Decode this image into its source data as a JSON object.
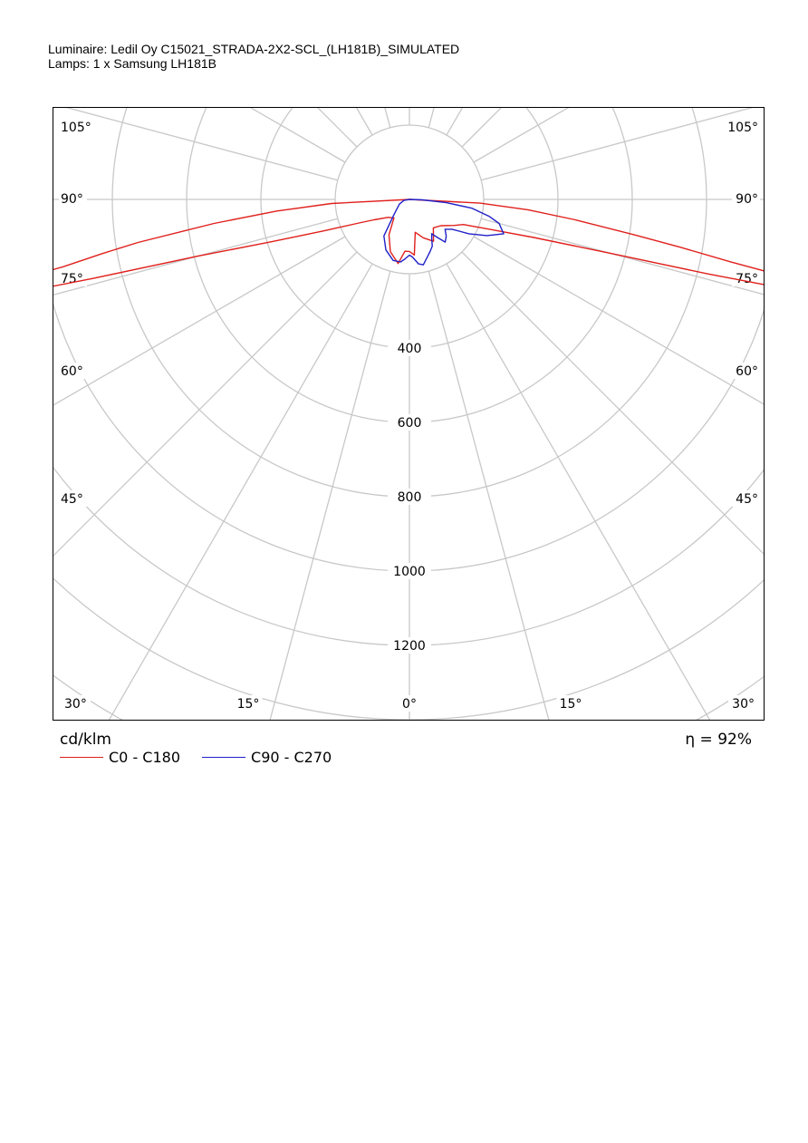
{
  "header": {
    "line1": "Luminaire: Ledil Oy C15021_STRADA-2X2-SCL_(LH181B)_SIMULATED",
    "line2": "Lamps: 1 x Samsung LH181B"
  },
  "footer": {
    "unit": "cd/klm",
    "efficiency": "η = 92%"
  },
  "colors": {
    "c0": "#e0201c",
    "c90": "#2020c8",
    "grid": "#c8c8c8"
  },
  "chart_data": {
    "type": "polar",
    "title": "",
    "unit": "cd/klm",
    "radial_ticks": [
      400,
      600,
      800,
      1000,
      1200
    ],
    "radial_grid": [
      200,
      400,
      600,
      800,
      1000,
      1200,
      1400,
      1600
    ],
    "angle_ticks": [
      {
        "label": "105°",
        "side": "left"
      },
      {
        "label": "90°",
        "side": "left"
      },
      {
        "label": "75°",
        "side": "left"
      },
      {
        "label": "60°",
        "side": "left"
      },
      {
        "label": "45°",
        "side": "left"
      },
      {
        "label": "30°",
        "side": "left"
      },
      {
        "label": "15°",
        "side": "left"
      },
      {
        "label": "0°",
        "side": "center"
      },
      {
        "label": "15°",
        "side": "right"
      },
      {
        "label": "30°",
        "side": "right"
      },
      {
        "label": "45°",
        "side": "right"
      },
      {
        "label": "60°",
        "side": "right"
      },
      {
        "label": "75°",
        "side": "right"
      },
      {
        "label": "90°",
        "side": "right"
      },
      {
        "label": "105°",
        "side": "right"
      }
    ],
    "legend": [
      "C0 - C180",
      "C90 - C270"
    ],
    "series": [
      {
        "name": "C0 - C180",
        "angles": [
          -90,
          -87,
          -85,
          -83,
          -81,
          -80,
          -79,
          -78.5,
          -78,
          -77.5,
          -77,
          -76.5,
          -76,
          -75,
          -73,
          -70,
          -65,
          -60,
          -50,
          -40,
          -30,
          -20,
          -10,
          -5,
          0,
          5,
          10,
          20,
          30,
          40,
          50,
          60,
          65,
          70,
          73,
          75,
          76,
          76.5,
          77,
          77.5,
          78,
          78.5,
          79,
          80,
          81,
          83,
          85,
          87,
          90
        ],
        "values": [
          0,
          210,
          360,
          530,
          740,
          840,
          950,
          1060,
          1160,
          1220,
          1200,
          1060,
          880,
          590,
          390,
          250,
          150,
          110,
          75,
          65,
          110,
          150,
          175,
          140,
          140,
          150,
          90,
          110,
          130,
          100,
          110,
          140,
          160,
          240,
          350,
          560,
          830,
          980,
          1140,
          1210,
          1140,
          1000,
          880,
          740,
          620,
          450,
          320,
          190,
          0
        ]
      },
      {
        "name": "C90 - C270",
        "angles": [
          -90,
          -80,
          -65,
          -45,
          -35,
          -25,
          -15,
          -8,
          -4,
          0,
          3,
          8,
          12,
          18,
          22,
          26,
          30,
          33,
          36,
          40,
          45,
          50,
          55,
          60,
          65,
          70,
          75,
          78,
          82,
          85,
          88,
          90
        ],
        "values": [
          0,
          15,
          30,
          60,
          120,
          150,
          170,
          170,
          160,
          150,
          155,
          175,
          180,
          160,
          150,
          140,
          120,
          110,
          125,
          150,
          140,
          125,
          140,
          185,
          230,
          270,
          250,
          220,
          170,
          100,
          35,
          0
        ]
      }
    ]
  }
}
